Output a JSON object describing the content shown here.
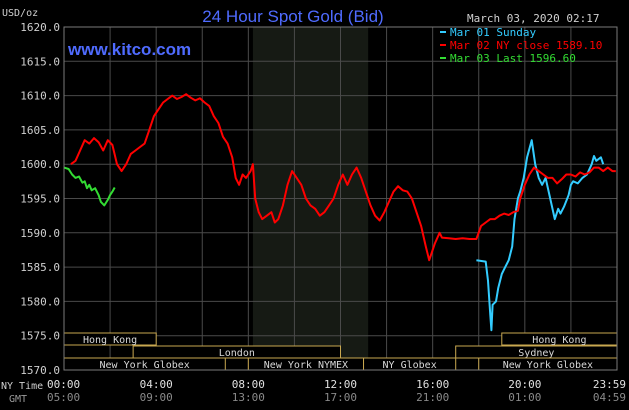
{
  "header": {
    "title": "24 Hour Spot Gold (Bid)",
    "unit": "USD/oz",
    "datetime": "March 03, 2020 02:17",
    "site": "www.kitco.com"
  },
  "legend": [
    {
      "label": "Mar 01 Sunday",
      "color": "#33ccff"
    },
    {
      "label": "Mar 02 NY close 1589.10",
      "color": "#ff0000"
    },
    {
      "label": "Mar 03 Last 1596.60",
      "color": "#33dd33"
    }
  ],
  "colors": {
    "background": "#000000",
    "grid": "#4a4a4a",
    "title": "#4f6bff",
    "axis_text": "#d0d0d0",
    "nymex_band": "#161a14",
    "market_box_border": "#c9a850",
    "market_box_text": "#d9d9d9"
  },
  "markets": {
    "row1": [
      {
        "label": "Hong Kong",
        "start": "00:00",
        "end": "04:00"
      },
      {
        "label": "Hong Kong",
        "start": "19:00",
        "end": "24:00"
      }
    ],
    "row2": [
      {
        "label": "London",
        "start": "03:00",
        "end": "12:00"
      },
      {
        "label": "Sydney",
        "start": "17:00",
        "end": "24:00"
      }
    ],
    "row3": [
      {
        "label": "New York Globex",
        "start": "00:00",
        "end": "07:00"
      },
      {
        "label": "New York NYMEX",
        "start": "08:00",
        "end": "13:00"
      },
      {
        "label": "NY Globex",
        "start": "13:00",
        "end": "17:00"
      },
      {
        "label": "New York Globex",
        "start": "18:00",
        "end": "24:00"
      }
    ]
  },
  "time_axis": {
    "row1_label": "NY Time",
    "row2_label": "GMT",
    "ny_ticks": [
      "00:00",
      "04:00",
      "08:00",
      "12:00",
      "16:00",
      "20:00",
      "23:59"
    ],
    "gmt_ticks": [
      "05:00",
      "09:00",
      "13:00",
      "17:00",
      "21:00",
      "01:00",
      "04:59"
    ]
  },
  "chart_data": {
    "type": "line",
    "title": "24 Hour Spot Gold (Bid)",
    "ylabel": "USD/oz",
    "ylim": [
      1570,
      1620
    ],
    "yticks": [
      "1620.0",
      "1615.0",
      "1610.0",
      "1605.0",
      "1600.0",
      "1595.0",
      "1590.0",
      "1585.0",
      "1580.0",
      "1575.0",
      "1570.0"
    ],
    "xlim_hours": [
      0,
      24
    ],
    "x_unit": "hours (NY time)",
    "nymex_hours": [
      8.2,
      13.2
    ],
    "grid": true,
    "legend_position": "top-right",
    "series": [
      {
        "name": "Mar 01 Sunday",
        "color": "#33ccff",
        "points": [
          [
            17.9,
            1586.0
          ],
          [
            18.3,
            1585.8
          ],
          [
            18.4,
            1583.0
          ],
          [
            18.5,
            1578.0
          ],
          [
            18.55,
            1575.8
          ],
          [
            18.6,
            1579.5
          ],
          [
            18.75,
            1580.0
          ],
          [
            18.85,
            1582.0
          ],
          [
            19.0,
            1584.0
          ],
          [
            19.15,
            1585.0
          ],
          [
            19.3,
            1586.0
          ],
          [
            19.45,
            1588.0
          ],
          [
            19.55,
            1592.0
          ],
          [
            19.7,
            1595.0
          ],
          [
            19.8,
            1596.0
          ],
          [
            19.95,
            1598.0
          ],
          [
            20.1,
            1601.0
          ],
          [
            20.3,
            1603.5
          ],
          [
            20.45,
            1600.0
          ],
          [
            20.6,
            1598.0
          ],
          [
            20.75,
            1597.0
          ],
          [
            20.9,
            1598.0
          ],
          [
            21.1,
            1595.0
          ],
          [
            21.3,
            1592.0
          ],
          [
            21.45,
            1593.5
          ],
          [
            21.55,
            1592.8
          ],
          [
            21.7,
            1593.8
          ],
          [
            21.9,
            1595.5
          ],
          [
            22.0,
            1597.0
          ],
          [
            22.1,
            1597.5
          ],
          [
            22.3,
            1597.2
          ],
          [
            22.5,
            1598.0
          ],
          [
            22.7,
            1598.5
          ],
          [
            22.9,
            1600.0
          ],
          [
            23.0,
            1601.2
          ],
          [
            23.1,
            1600.5
          ],
          [
            23.3,
            1601.0
          ],
          [
            23.4,
            1600.0
          ]
        ]
      },
      {
        "name": "Mar 02 NY close 1589.10",
        "color": "#ff0000",
        "points": [
          [
            0.3,
            1600.0
          ],
          [
            0.5,
            1600.5
          ],
          [
            0.7,
            1602.0
          ],
          [
            0.9,
            1603.5
          ],
          [
            1.1,
            1603.0
          ],
          [
            1.3,
            1603.8
          ],
          [
            1.5,
            1603.2
          ],
          [
            1.7,
            1602.0
          ],
          [
            1.9,
            1603.5
          ],
          [
            2.1,
            1602.8
          ],
          [
            2.3,
            1600.0
          ],
          [
            2.5,
            1599.0
          ],
          [
            2.7,
            1600.0
          ],
          [
            2.9,
            1601.5
          ],
          [
            3.1,
            1602.0
          ],
          [
            3.3,
            1602.5
          ],
          [
            3.5,
            1603.0
          ],
          [
            3.7,
            1605.0
          ],
          [
            3.9,
            1607.0
          ],
          [
            4.1,
            1608.0
          ],
          [
            4.3,
            1609.0
          ],
          [
            4.5,
            1609.5
          ],
          [
            4.7,
            1610.0
          ],
          [
            4.9,
            1609.5
          ],
          [
            5.1,
            1609.8
          ],
          [
            5.3,
            1610.2
          ],
          [
            5.5,
            1609.7
          ],
          [
            5.7,
            1609.3
          ],
          [
            5.9,
            1609.6
          ],
          [
            6.1,
            1609.0
          ],
          [
            6.3,
            1608.5
          ],
          [
            6.5,
            1607.0
          ],
          [
            6.7,
            1606.0
          ],
          [
            6.9,
            1604.0
          ],
          [
            7.1,
            1603.0
          ],
          [
            7.3,
            1601.0
          ],
          [
            7.45,
            1598.0
          ],
          [
            7.6,
            1597.0
          ],
          [
            7.75,
            1598.5
          ],
          [
            7.9,
            1598.0
          ],
          [
            8.1,
            1599.0
          ],
          [
            8.2,
            1600.0
          ],
          [
            8.3,
            1595.0
          ],
          [
            8.45,
            1593.0
          ],
          [
            8.6,
            1592.0
          ],
          [
            8.8,
            1592.5
          ],
          [
            9.0,
            1593.0
          ],
          [
            9.15,
            1591.5
          ],
          [
            9.3,
            1592.0
          ],
          [
            9.5,
            1594.0
          ],
          [
            9.7,
            1597.0
          ],
          [
            9.9,
            1599.0
          ],
          [
            10.1,
            1598.0
          ],
          [
            10.3,
            1597.0
          ],
          [
            10.5,
            1595.0
          ],
          [
            10.7,
            1594.0
          ],
          [
            10.9,
            1593.5
          ],
          [
            11.1,
            1592.5
          ],
          [
            11.3,
            1593.0
          ],
          [
            11.5,
            1594.0
          ],
          [
            11.7,
            1595.0
          ],
          [
            11.9,
            1597.0
          ],
          [
            12.1,
            1598.5
          ],
          [
            12.3,
            1597.0
          ],
          [
            12.5,
            1598.5
          ],
          [
            12.7,
            1599.5
          ],
          [
            12.9,
            1598.0
          ],
          [
            13.1,
            1596.0
          ],
          [
            13.3,
            1594.0
          ],
          [
            13.5,
            1592.5
          ],
          [
            13.7,
            1591.8
          ],
          [
            13.9,
            1593.0
          ],
          [
            14.1,
            1594.5
          ],
          [
            14.3,
            1596.0
          ],
          [
            14.5,
            1596.8
          ],
          [
            14.7,
            1596.2
          ],
          [
            14.9,
            1596.0
          ],
          [
            15.1,
            1595.0
          ],
          [
            15.3,
            1593.0
          ],
          [
            15.5,
            1591.0
          ],
          [
            15.7,
            1588.0
          ],
          [
            15.85,
            1586.0
          ],
          [
            15.95,
            1587.0
          ],
          [
            16.1,
            1588.5
          ],
          [
            16.3,
            1590.0
          ],
          [
            16.4,
            1589.3
          ],
          [
            16.7,
            1589.2
          ],
          [
            17.0,
            1589.1
          ],
          [
            17.3,
            1589.2
          ],
          [
            17.6,
            1589.1
          ],
          [
            17.9,
            1589.1
          ],
          [
            18.1,
            1591.0
          ],
          [
            18.3,
            1591.5
          ],
          [
            18.5,
            1592.0
          ],
          [
            18.7,
            1592.0
          ],
          [
            18.9,
            1592.5
          ],
          [
            19.1,
            1592.8
          ],
          [
            19.3,
            1592.6
          ],
          [
            19.5,
            1593.0
          ],
          [
            19.7,
            1593.2
          ],
          [
            19.8,
            1595.0
          ],
          [
            20.0,
            1597.0
          ],
          [
            20.2,
            1598.5
          ],
          [
            20.4,
            1599.5
          ],
          [
            20.6,
            1599.0
          ],
          [
            20.8,
            1598.5
          ],
          [
            21.0,
            1598.0
          ],
          [
            21.2,
            1598.0
          ],
          [
            21.4,
            1597.2
          ],
          [
            21.6,
            1597.8
          ],
          [
            21.8,
            1598.5
          ],
          [
            22.0,
            1598.5
          ],
          [
            22.2,
            1598.2
          ],
          [
            22.4,
            1598.8
          ],
          [
            22.6,
            1598.5
          ],
          [
            22.8,
            1598.8
          ],
          [
            23.0,
            1599.5
          ],
          [
            23.2,
            1599.5
          ],
          [
            23.4,
            1599.0
          ],
          [
            23.6,
            1599.5
          ],
          [
            23.8,
            1599.0
          ],
          [
            23.95,
            1599.0
          ]
        ]
      },
      {
        "name": "Mar 03 Last 1596.60",
        "color": "#33dd33",
        "points": [
          [
            0.0,
            1599.5
          ],
          [
            0.2,
            1599.3
          ],
          [
            0.35,
            1598.5
          ],
          [
            0.5,
            1598.0
          ],
          [
            0.65,
            1598.2
          ],
          [
            0.8,
            1597.3
          ],
          [
            0.9,
            1597.5
          ],
          [
            1.0,
            1596.5
          ],
          [
            1.1,
            1597.0
          ],
          [
            1.2,
            1596.2
          ],
          [
            1.35,
            1596.5
          ],
          [
            1.5,
            1595.5
          ],
          [
            1.6,
            1594.5
          ],
          [
            1.75,
            1594.0
          ],
          [
            1.9,
            1594.8
          ],
          [
            2.0,
            1595.5
          ],
          [
            2.1,
            1596.0
          ],
          [
            2.2,
            1596.6
          ]
        ]
      }
    ]
  }
}
